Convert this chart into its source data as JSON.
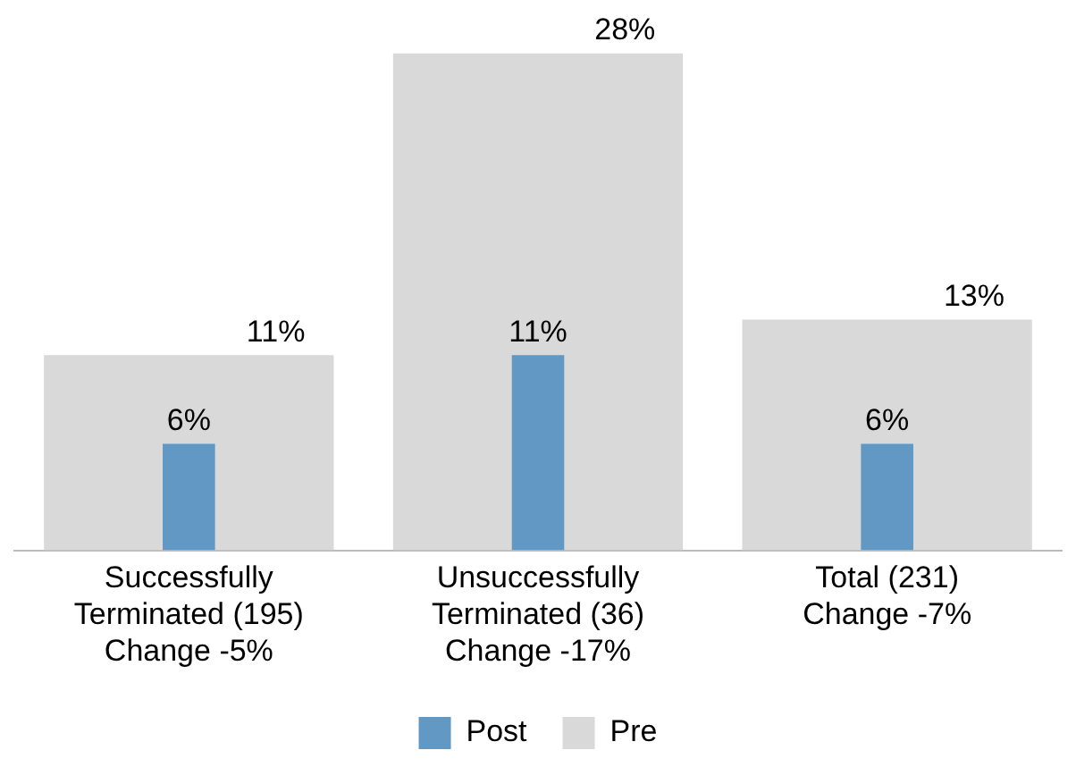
{
  "chart_data": {
    "type": "bar",
    "categories": [
      "Successfully\nTerminated (195)\nChange -5%",
      "Unsuccessfully\nTerminated (36)\nChange -17%",
      "Total (231)\nChange -7%"
    ],
    "series": [
      {
        "name": "Post",
        "color": "#6198c4",
        "values": [
          6,
          11,
          6
        ],
        "value_labels": [
          "6%",
          "11%",
          "6%"
        ]
      },
      {
        "name": "Pre",
        "color": "#d9d9d9",
        "values": [
          11,
          28,
          13
        ],
        "value_labels": [
          "11%",
          "28%",
          "13%"
        ]
      }
    ],
    "legend": "bottom",
    "grid": false
  }
}
